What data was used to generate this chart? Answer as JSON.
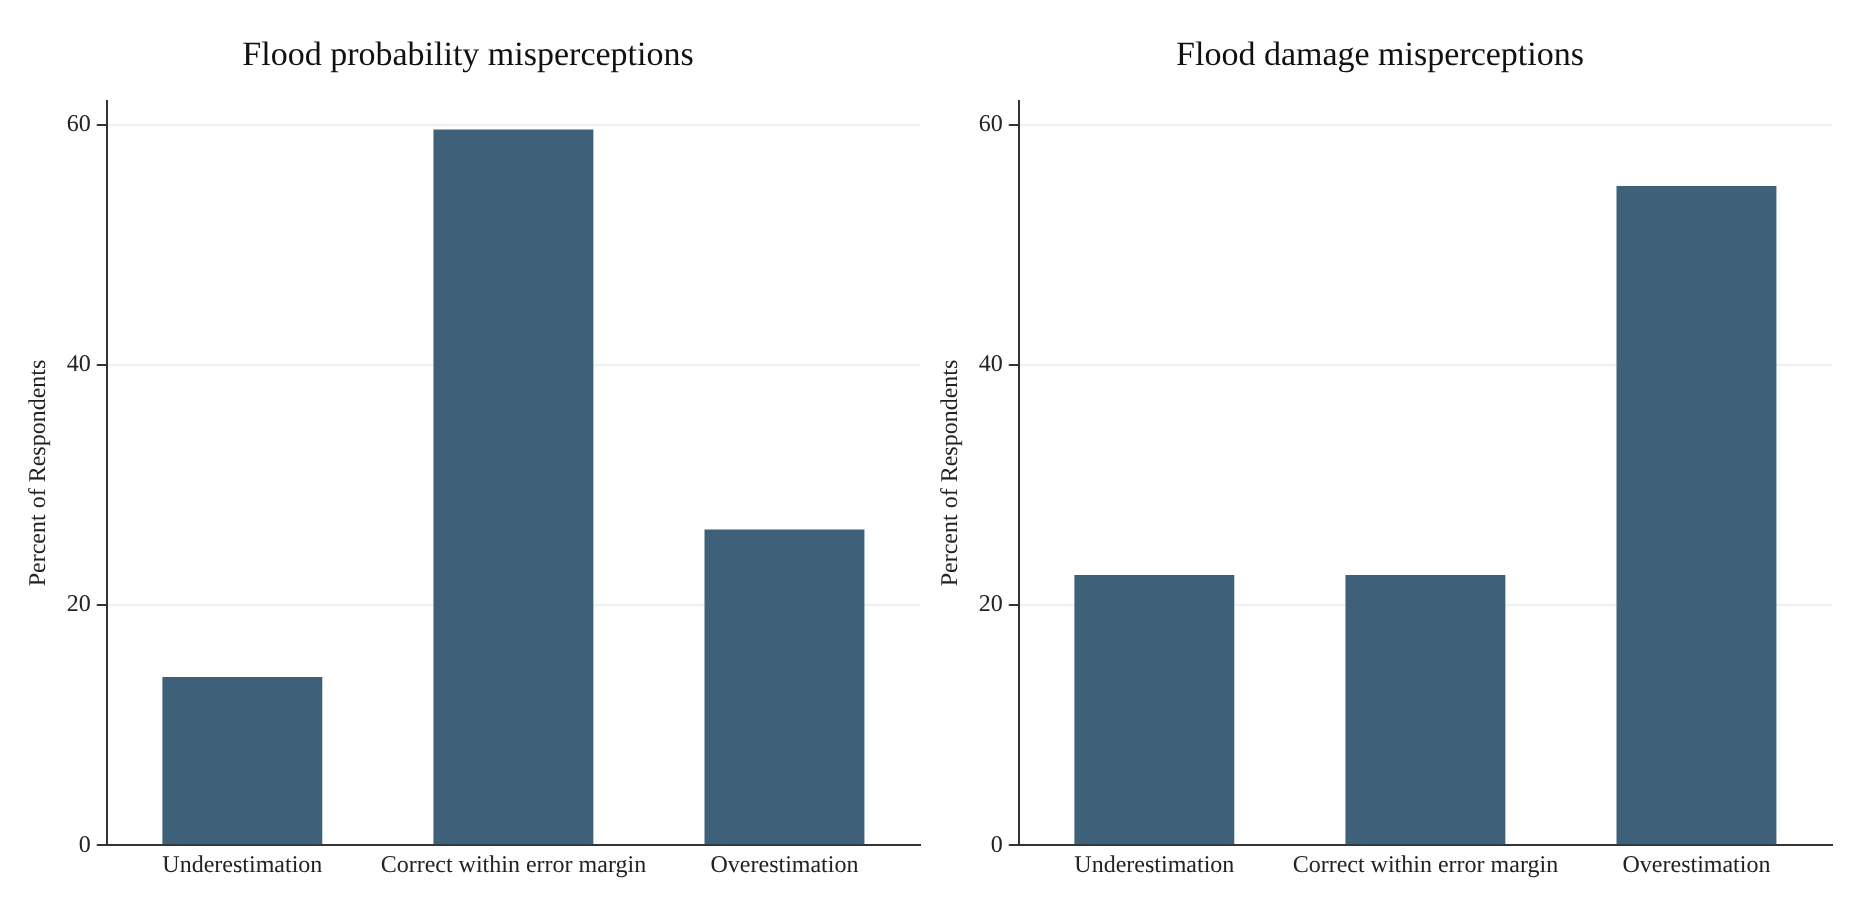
{
  "chart_data": [
    {
      "type": "bar",
      "title": "Flood probability misperceptions",
      "ylabel": "Percent of Respondents",
      "categories": [
        "Underestimation",
        "Correct within error margin",
        "Overestimation"
      ],
      "values": [
        14.0,
        59.6,
        26.3
      ],
      "color": "#3e6079",
      "ylim": [
        0,
        62
      ],
      "yticks": [
        0,
        20,
        40,
        60
      ],
      "grid": "y",
      "legend": false
    },
    {
      "type": "bar",
      "title": "Flood damage misperceptions",
      "ylabel": "Percent of Respondents",
      "categories": [
        "Underestimation",
        "Correct within error margin",
        "Overestimation"
      ],
      "values": [
        22.5,
        22.5,
        54.9
      ],
      "color": "#3e6079",
      "ylim": [
        0,
        62
      ],
      "yticks": [
        0,
        20,
        40,
        60
      ],
      "grid": "y",
      "legend": false
    }
  ]
}
